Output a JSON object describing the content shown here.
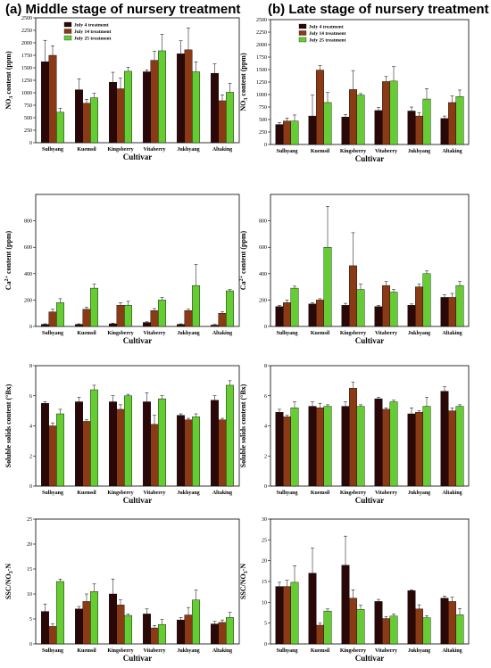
{
  "figure": {
    "col_a_title": "(a) Middle stage of nursery treatment",
    "col_b_title": "(b) Late stage of nursery treatment"
  },
  "colors": {
    "July 4 treatment": "#2a0808",
    "July 14 treatment": "#8a3a14",
    "July 25 treatment": "#66cc33"
  },
  "chart_data": [
    {
      "id": "a1",
      "type": "bar",
      "categories": [
        "Sulhyang",
        "Kuemsil",
        "Kingsberry",
        "Vitaberry",
        "Jukhyang",
        "Altaking"
      ],
      "xlabel": "Cultivar",
      "ylabel": "NO3 content (ppm)",
      "ylim": [
        0,
        2500
      ],
      "yticks": [
        0,
        250,
        500,
        750,
        1000,
        1250,
        1500,
        1750,
        2000,
        2250,
        2500
      ],
      "legend": "top-left",
      "series": [
        {
          "name": "July 4 treatment",
          "values": [
            1620,
            1060,
            1210,
            1420,
            1780,
            1390
          ],
          "errors": [
            430,
            220,
            200,
            40,
            260,
            190
          ]
        },
        {
          "name": "July 14 treatment",
          "values": [
            1750,
            790,
            1080,
            1650,
            1860,
            840
          ],
          "errors": [
            190,
            80,
            210,
            180,
            440,
            120
          ]
        },
        {
          "name": "July 25 treatment",
          "values": [
            610,
            900,
            1430,
            1840,
            1420,
            1010
          ],
          "errors": [
            80,
            90,
            80,
            330,
            200,
            180
          ]
        }
      ]
    },
    {
      "id": "a2",
      "type": "bar",
      "categories": [
        "Sulhyang",
        "Kuemsil",
        "Kingsberry",
        "Vitaberry",
        "Jukhyang",
        "Altaking"
      ],
      "xlabel": "Cultivar",
      "ylabel": "Ca2+ content (ppm)",
      "ylim": [
        0,
        1000
      ],
      "yticks": [
        0,
        200,
        400,
        600,
        800
      ],
      "series": [
        {
          "name": "July 4 treatment",
          "values": [
            15,
            15,
            20,
            30,
            15,
            10
          ],
          "errors": [
            5,
            5,
            5,
            5,
            5,
            5
          ]
        },
        {
          "name": "July 14 treatment",
          "values": [
            110,
            130,
            160,
            120,
            120,
            100
          ],
          "errors": [
            20,
            15,
            20,
            15,
            10,
            10
          ]
        },
        {
          "name": "July 25 treatment",
          "values": [
            180,
            290,
            160,
            200,
            310,
            270
          ],
          "errors": [
            30,
            30,
            30,
            20,
            160,
            10
          ]
        }
      ]
    },
    {
      "id": "a3",
      "type": "bar",
      "categories": [
        "Sulhyang",
        "Kuemsil",
        "Kingsberry",
        "Vitaberry",
        "Jukhyang",
        "Altaking"
      ],
      "xlabel": "Cultivar",
      "ylabel": "Soluble solids content (°Bx)",
      "ylim": [
        0,
        8
      ],
      "yticks": [
        0,
        2,
        4,
        6,
        8
      ],
      "series": [
        {
          "name": "July 4 treatment",
          "values": [
            5.5,
            5.6,
            5.6,
            5.6,
            4.7,
            5.7
          ],
          "errors": [
            0.1,
            0.3,
            0.4,
            0.6,
            0.1,
            0.3
          ]
        },
        {
          "name": "July 14 treatment",
          "values": [
            4.0,
            4.3,
            5.1,
            4.1,
            4.4,
            4.4
          ],
          "errors": [
            0.2,
            0.1,
            0.3,
            0.6,
            0.1,
            0.1
          ]
        },
        {
          "name": "July 25 treatment",
          "values": [
            4.8,
            6.4,
            6.0,
            5.8,
            4.6,
            6.7
          ],
          "errors": [
            0.3,
            0.3,
            0.1,
            0.2,
            0.2,
            0.3
          ]
        }
      ]
    },
    {
      "id": "a4",
      "type": "bar",
      "categories": [
        "Sulhyang",
        "Kuemsil",
        "Kingsberry",
        "Vitaberry",
        "Jukhyang",
        "Altaking"
      ],
      "xlabel": "Cultivar",
      "ylabel": "SSC/NO3-N",
      "ylim": [
        0,
        25
      ],
      "yticks": [
        0,
        5,
        10,
        15,
        20,
        25
      ],
      "series": [
        {
          "name": "July 4 treatment",
          "values": [
            6.5,
            7.0,
            10.0,
            6.0,
            4.8,
            4.0
          ],
          "errors": [
            1.5,
            0.5,
            3.0,
            1.0,
            0.5,
            0.5
          ]
        },
        {
          "name": "July 14 treatment",
          "values": [
            3.5,
            8.5,
            7.8,
            3.2,
            5.8,
            4.3
          ],
          "errors": [
            0.5,
            1.5,
            1.0,
            0.5,
            1.5,
            0.5
          ]
        },
        {
          "name": "July 25 treatment",
          "values": [
            12.5,
            10.5,
            5.7,
            3.9,
            8.8,
            5.3
          ],
          "errors": [
            0.5,
            1.5,
            0.3,
            1.0,
            2.0,
            1.0
          ]
        }
      ]
    },
    {
      "id": "b1",
      "type": "bar",
      "categories": [
        "Sulhyang",
        "Kuemsil",
        "Kingsberry",
        "Vitaberry",
        "Jukhyang",
        "Altaking"
      ],
      "xlabel": "Cultivar",
      "ylabel": "NO3 content (ppm)",
      "ylim": [
        0,
        2500
      ],
      "yticks": [
        0,
        250,
        500,
        750,
        1000,
        1250,
        1500,
        1750,
        2000,
        2250,
        2500
      ],
      "legend": "top-left",
      "series": [
        {
          "name": "July 4 treatment",
          "values": [
            400,
            570,
            550,
            680,
            670,
            520
          ],
          "errors": [
            40,
            420,
            50,
            60,
            80,
            50
          ]
        },
        {
          "name": "July 14 treatment",
          "values": [
            470,
            1490,
            1100,
            1260,
            570,
            840
          ],
          "errors": [
            60,
            90,
            380,
            100,
            70,
            130
          ]
        },
        {
          "name": "July 25 treatment",
          "values": [
            470,
            840,
            990,
            1270,
            910,
            960
          ],
          "errors": [
            120,
            200,
            30,
            290,
            210,
            130
          ]
        }
      ]
    },
    {
      "id": "b2",
      "type": "bar",
      "categories": [
        "Sulhyang",
        "Kuemsil",
        "Kingsberry",
        "Vitaberry",
        "Jukhyang",
        "Altaking"
      ],
      "xlabel": "Cultivar",
      "ylabel": "Ca2+ content (ppm)",
      "ylim": [
        0,
        1000
      ],
      "yticks": [
        0,
        200,
        400,
        600,
        800
      ],
      "series": [
        {
          "name": "July 4 treatment",
          "values": [
            150,
            170,
            160,
            150,
            160,
            220
          ],
          "errors": [
            10,
            10,
            15,
            10,
            10,
            20
          ]
        },
        {
          "name": "July 14 treatment",
          "values": [
            180,
            200,
            460,
            310,
            300,
            220
          ],
          "errors": [
            20,
            10,
            250,
            30,
            20,
            30
          ]
        },
        {
          "name": "July 25 treatment",
          "values": [
            290,
            600,
            280,
            260,
            400,
            310
          ],
          "errors": [
            15,
            310,
            40,
            20,
            20,
            30
          ]
        }
      ]
    },
    {
      "id": "b3",
      "type": "bar",
      "categories": [
        "Sulhyang",
        "Kuemsil",
        "Kingsberry",
        "Vitaberry",
        "Jukhyang",
        "Altaking"
      ],
      "xlabel": "Cultivar",
      "ylabel": "Soluble solids content (°Bx)",
      "ylim": [
        0,
        8
      ],
      "yticks": [
        0,
        2,
        4,
        6,
        8
      ],
      "series": [
        {
          "name": "July 4 treatment",
          "values": [
            4.9,
            5.3,
            5.3,
            5.8,
            4.8,
            6.3
          ],
          "errors": [
            0.2,
            0.3,
            0.3,
            0.1,
            0.4,
            0.3
          ]
        },
        {
          "name": "July 14 treatment",
          "values": [
            4.6,
            5.2,
            6.5,
            5.1,
            4.9,
            5.0
          ],
          "errors": [
            0.1,
            0.3,
            0.4,
            0.1,
            0.1,
            0.2
          ]
        },
        {
          "name": "July 25 treatment",
          "values": [
            5.2,
            5.3,
            5.3,
            5.6,
            5.3,
            5.3
          ],
          "errors": [
            0.4,
            0.1,
            0.1,
            0.1,
            0.6,
            0.1
          ]
        }
      ]
    },
    {
      "id": "b4",
      "type": "bar",
      "categories": [
        "Sulhyang",
        "Kuemsil",
        "Kingsberry",
        "Vitaberry",
        "Jukhyang",
        "Altaking"
      ],
      "xlabel": "Cultivar",
      "ylabel": "SSC/NO3-N",
      "ylim": [
        0,
        30
      ],
      "yticks": [
        0,
        5,
        10,
        15,
        20,
        25,
        30
      ],
      "series": [
        {
          "name": "July 4 treatment",
          "values": [
            13.8,
            17.0,
            18.9,
            10.2,
            12.8,
            11.0
          ],
          "errors": [
            1.0,
            6.0,
            7.0,
            0.5,
            0.2,
            0.5
          ]
        },
        {
          "name": "July 14 treatment",
          "values": [
            13.8,
            4.5,
            11.0,
            6.1,
            8.4,
            10.2
          ],
          "errors": [
            1.5,
            0.5,
            2.0,
            0.5,
            1.0,
            1.0
          ]
        },
        {
          "name": "July 25 treatment",
          "values": [
            14.8,
            7.9,
            8.3,
            6.7,
            6.3,
            7.0
          ],
          "errors": [
            4.0,
            0.5,
            1.0,
            0.5,
            0.5,
            1.5
          ]
        }
      ]
    }
  ]
}
